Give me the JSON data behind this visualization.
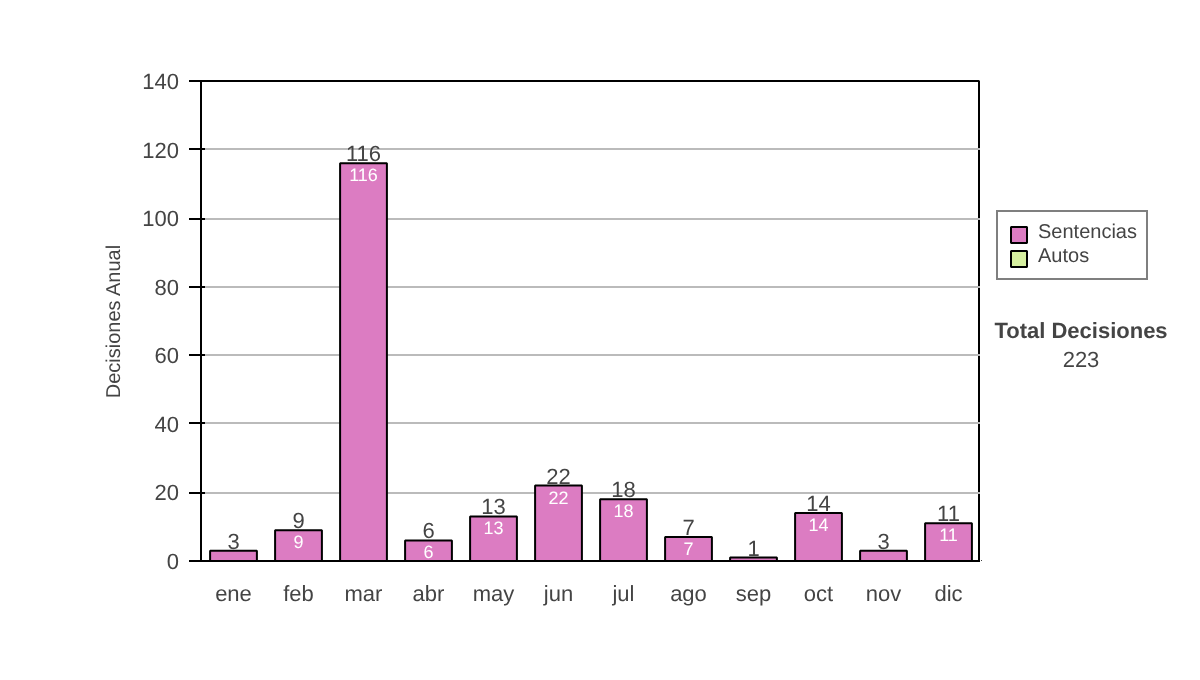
{
  "chart_data": {
    "type": "bar",
    "stacked": true,
    "ylabel": "Decisiones Anual",
    "categories": [
      "ene",
      "feb",
      "mar",
      "abr",
      "may",
      "jun",
      "jul",
      "ago",
      "sep",
      "oct",
      "nov",
      "dic"
    ],
    "series": [
      {
        "name": "Sentencias",
        "color": "#dc7cc2",
        "values": [
          3,
          9,
          116,
          6,
          13,
          22,
          18,
          7,
          1,
          14,
          3,
          11
        ],
        "value_labels": [
          null,
          "9",
          "116",
          "6",
          "13",
          "22",
          "18",
          "7",
          null,
          "14",
          null,
          "11"
        ]
      },
      {
        "name": "Autos",
        "color": "#d6f0a0",
        "values": [
          0,
          0,
          0,
          0,
          0,
          0,
          0,
          0,
          0,
          0,
          0,
          0
        ]
      }
    ],
    "totals": [
      "3",
      "9",
      "116",
      "6",
      "13",
      "22",
      "18",
      "7",
      "1",
      "14",
      "3",
      "11"
    ],
    "ylim": [
      0,
      140
    ],
    "yticks": [
      0,
      20,
      40,
      60,
      80,
      100,
      120,
      140
    ],
    "grid": "y",
    "legend": "right",
    "annotations": [
      "Total Decisiones",
      "223"
    ]
  }
}
